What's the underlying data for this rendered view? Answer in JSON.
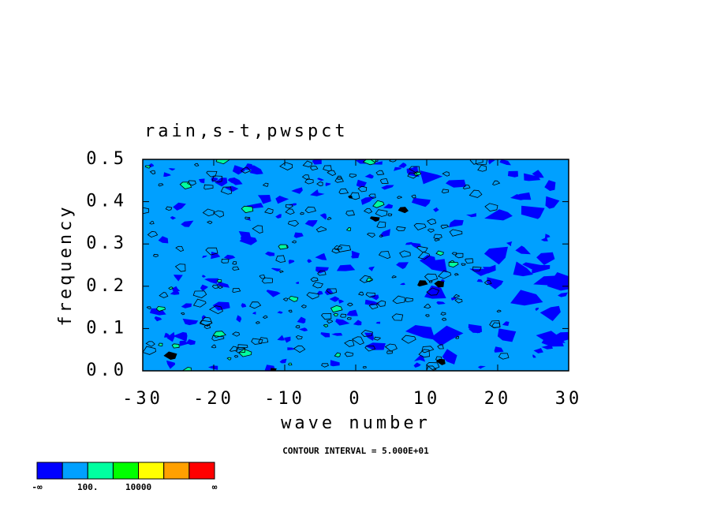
{
  "chart_data": {
    "type": "contour",
    "title": "rain,s-t,pwspct",
    "xlabel": "wave number",
    "ylabel": "frequency",
    "xlim": [
      -30,
      30
    ],
    "xticks": [
      -30,
      -20,
      -10,
      0,
      10,
      20,
      30
    ],
    "ylim": [
      0,
      0.5
    ],
    "yticks": [
      {
        "value": 0,
        "label": "0.0"
      },
      0.1,
      0.2,
      0.3,
      0.4,
      0.5
    ],
    "annotation": "CONTOUR INTERVAL = 5.000E+01",
    "colorbar": {
      "colors": [
        "#0000ff",
        "#00a0ff",
        "#00ffa0",
        "#00ff00",
        "#ffff00",
        "#ffa000",
        "#ff0000"
      ],
      "labels": [
        "-∞",
        "100.",
        "10000",
        "∞"
      ]
    }
  }
}
